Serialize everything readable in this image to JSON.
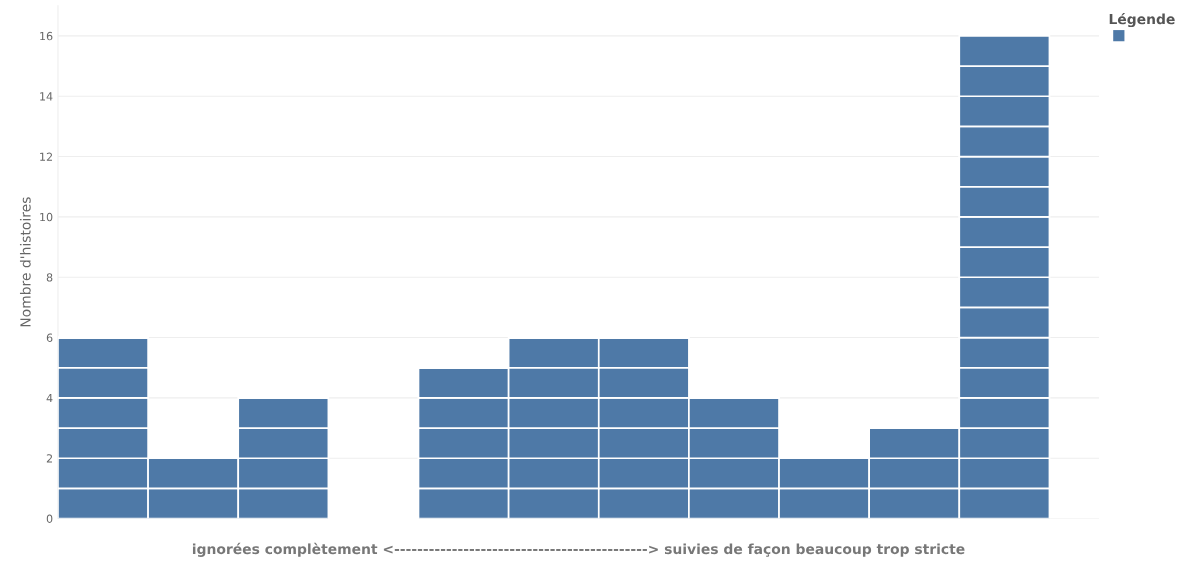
{
  "chart_data": {
    "type": "bar",
    "stacked": true,
    "xlabel": "ignorées complètement <--------------------------------------------> suivies de façon beaucoup trop stricte",
    "ylabel": "Nombre d'histoires",
    "annotations": [
      "Légende"
    ],
    "grid": "y",
    "categories": [
      null,
      null,
      null,
      null,
      null,
      null,
      null,
      null,
      null,
      null,
      null
    ],
    "ylim": [
      0,
      17
    ],
    "yticks": [
      0,
      2,
      4,
      6,
      8,
      10,
      12,
      14,
      16
    ],
    "series": [
      {
        "color": "#4e79a7",
        "values": [
          1,
          1,
          1,
          null,
          1,
          1,
          1,
          1,
          1,
          1,
          1
        ]
      },
      {
        "color": "#4e79a7",
        "values": [
          1,
          1,
          1,
          null,
          1,
          1,
          1,
          1,
          1,
          1,
          1
        ]
      },
      {
        "color": "#4e79a7",
        "values": [
          1,
          null,
          1,
          null,
          1,
          1,
          1,
          1,
          null,
          1,
          1
        ]
      },
      {
        "color": "#4e79a7",
        "values": [
          1,
          null,
          1,
          null,
          1,
          1,
          1,
          1,
          null,
          null,
          1
        ]
      },
      {
        "color": "#4e79a7",
        "values": [
          1,
          null,
          null,
          null,
          1,
          1,
          1,
          null,
          null,
          null,
          1
        ]
      },
      {
        "color": "#4e79a7",
        "values": [
          1,
          null,
          null,
          null,
          null,
          1,
          1,
          null,
          null,
          null,
          1
        ]
      },
      {
        "color": "#4e79a7",
        "values": [
          null,
          null,
          null,
          null,
          null,
          null,
          null,
          null,
          null,
          null,
          1
        ]
      },
      {
        "color": "#4e79a7",
        "values": [
          null,
          null,
          null,
          null,
          null,
          null,
          null,
          null,
          null,
          null,
          1
        ]
      },
      {
        "color": "#4e79a7",
        "values": [
          null,
          null,
          null,
          null,
          null,
          null,
          null,
          null,
          null,
          null,
          1
        ]
      },
      {
        "color": "#4e79a7",
        "values": [
          null,
          null,
          null,
          null,
          null,
          null,
          null,
          null,
          null,
          null,
          1
        ]
      },
      {
        "color": "#4e79a7",
        "values": [
          null,
          null,
          null,
          null,
          null,
          null,
          null,
          null,
          null,
          null,
          1
        ]
      },
      {
        "color": "#4e79a7",
        "values": [
          null,
          null,
          null,
          null,
          null,
          null,
          null,
          null,
          null,
          null,
          1
        ]
      },
      {
        "color": "#4e79a7",
        "values": [
          null,
          null,
          null,
          null,
          null,
          null,
          null,
          null,
          null,
          null,
          1
        ]
      },
      {
        "color": "#4e79a7",
        "values": [
          null,
          null,
          null,
          null,
          null,
          null,
          null,
          null,
          null,
          null,
          1
        ]
      },
      {
        "color": "#4e79a7",
        "values": [
          null,
          null,
          null,
          null,
          null,
          null,
          null,
          null,
          null,
          null,
          1
        ]
      },
      {
        "color": "#4e79a7",
        "values": [
          null,
          null,
          null,
          null,
          null,
          null,
          null,
          null,
          null,
          null,
          1
        ]
      }
    ]
  }
}
